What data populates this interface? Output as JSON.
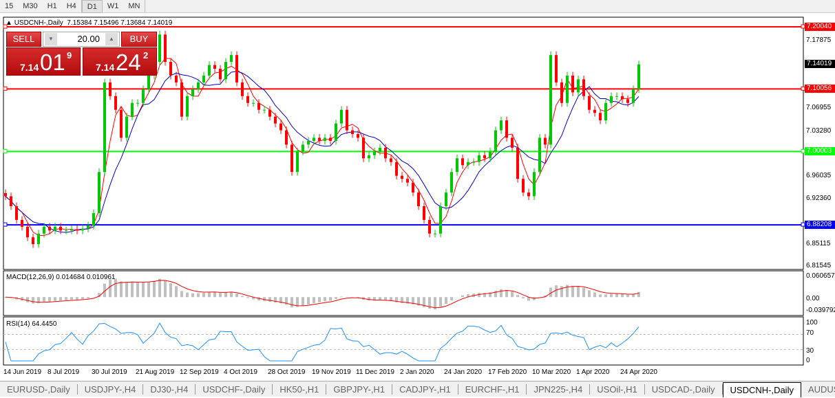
{
  "timeframes": [
    "15",
    "M30",
    "H1",
    "H4",
    "D1",
    "W1",
    "MN"
  ],
  "active_timeframe": "D1",
  "header": {
    "symbol": "USDCNH-,Daily",
    "ohlc": "7.15384 7.15496 7.13684 7.14019"
  },
  "trade_panel": {
    "sell_label": "SELL",
    "buy_label": "BUY",
    "lots": "20.00",
    "sell_big": "7.14",
    "sell_main": "01",
    "sell_frac": "9",
    "buy_big": "7.14",
    "buy_main": "24",
    "buy_frac": "2"
  },
  "price_axis": [
    "7.17875",
    "7.06955",
    "7.03280",
    "6.96035",
    "6.92360",
    "6.85115",
    "6.81545"
  ],
  "current_price": "7.14019",
  "levels": [
    {
      "price": "7.20040",
      "color": "#ff0000"
    },
    {
      "price": "7.10056",
      "color": "#ff0000"
    },
    {
      "price": "7.00003",
      "color": "#00ff00"
    },
    {
      "price": "6.88208",
      "color": "#0000ff"
    }
  ],
  "macd": {
    "label": "MACD(12,26,9) 0.014684 0.010961",
    "axis": [
      "0.060657",
      "0.00",
      "-0.039792"
    ]
  },
  "rsi": {
    "label": "RSI(14) 64.4450",
    "axis": [
      "100",
      "70",
      "30",
      "0"
    ]
  },
  "dates": [
    "14 Jun 2019",
    "8 Jul 2019",
    "30 Jul 2019",
    "21 Aug 2019",
    "12 Sep 2019",
    "4 Oct 2019",
    "28 Oct 2019",
    "19 Nov 2019",
    "11 Dec 2019",
    "2 Jan 2020",
    "24 Jan 2020",
    "17 Feb 2020",
    "10 Mar 2020",
    "1 Apr 2020",
    "24 Apr 2020"
  ],
  "tabs": [
    "EURUSD-,Daily",
    "USDJPY-,H4",
    "DJ30-,H4",
    "USDCHF-,Daily",
    "HK50-,H1",
    "GBPJPY-,H1",
    "CADJPY-,H1",
    "EURCHF-,H1",
    "JPN225-,H4",
    "USOil-,H1",
    "USDCAD-,Daily",
    "USDCNH-,Daily",
    "AUDUS"
  ],
  "active_tab": "USDCNH-,Daily",
  "colors": {
    "bull": "#00c800",
    "bear": "#ff0000",
    "ma_fast": "#ff0000",
    "ma_slow": "#0000c8",
    "rsi": "#1e90ff",
    "macd_hist": "#c0c0c0"
  },
  "chart_data": {
    "type": "candlestick",
    "closes": [
      6.928,
      6.912,
      6.89,
      6.879,
      6.862,
      6.851,
      6.868,
      6.879,
      6.873,
      6.879,
      6.873,
      6.873,
      6.875,
      6.873,
      6.876,
      6.881,
      6.901,
      6.967,
      7.111,
      7.089,
      7.067,
      7.022,
      7.056,
      7.078,
      7.078,
      7.1,
      7.122,
      7.144,
      7.188,
      7.144,
      7.122,
      7.111,
      7.056,
      7.089,
      7.1,
      7.111,
      7.122,
      7.139,
      7.133,
      7.116,
      7.144,
      7.155,
      7.111,
      7.089,
      7.078,
      7.078,
      7.067,
      7.067,
      7.056,
      7.045,
      7.034,
      7.011,
      6.967,
      7.0,
      7.011,
      7.017,
      7.022,
      7.017,
      7.022,
      7.017,
      7.045,
      7.067,
      7.034,
      7.028,
      7.022,
      6.989,
      6.994,
      7.0,
      7.006,
      6.989,
      6.983,
      6.961,
      6.956,
      6.95,
      6.934,
      6.912,
      6.89,
      6.868,
      6.868,
      6.912,
      6.934,
      6.967,
      6.989,
      6.978,
      6.983,
      6.983,
      6.994,
      6.989,
      7.0,
      7.034,
      7.05,
      7.022,
      7.006,
      6.956,
      6.934,
      6.928,
      6.967,
      7.022,
      7.011,
      7.155,
      7.111,
      7.078,
      7.122,
      7.095,
      7.116,
      7.089,
      7.067,
      7.062,
      7.05,
      7.078,
      7.089,
      7.089,
      7.084,
      7.078,
      7.1,
      7.14
    ]
  }
}
